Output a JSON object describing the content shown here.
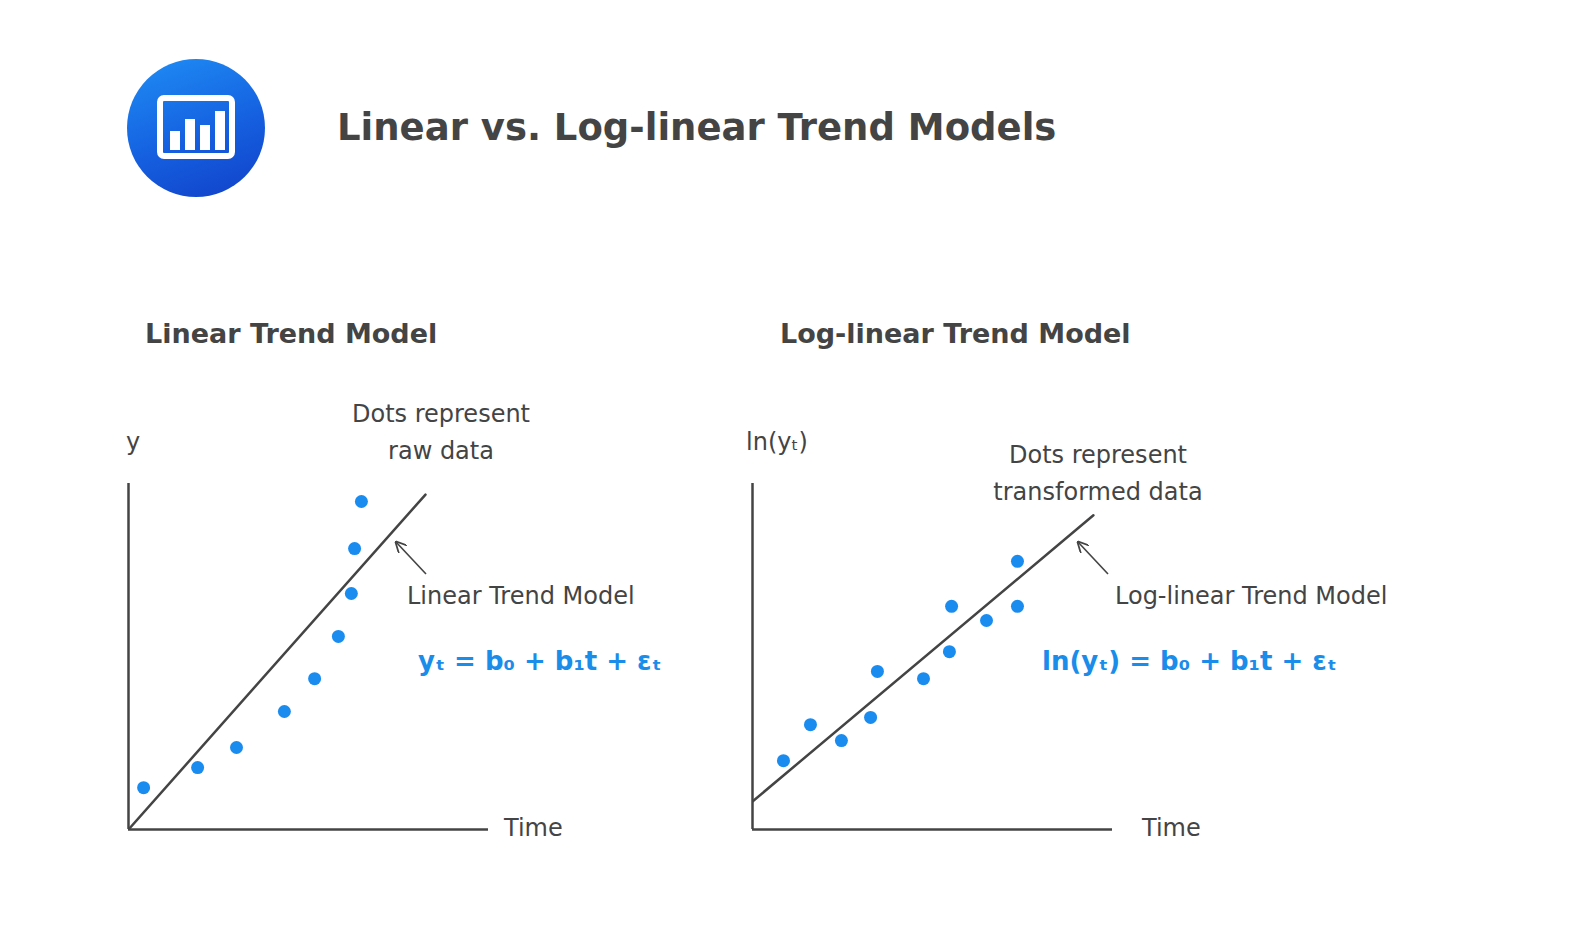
{
  "title": "Linear vs. Log-linear Trend Models",
  "chart_data": [
    {
      "type": "scatter",
      "title": "Linear Trend Model",
      "x_label": "Time",
      "y_label": "y",
      "xlim": [
        0,
        10
      ],
      "ylim": [
        0,
        10
      ],
      "tick_labels": false,
      "annotations": [
        "yₜ = b₀ + b₁t + εₜ"
      ],
      "series": [
        {
          "name": "Dots represent\nraw data",
          "type": "scatter",
          "marker": "circle",
          "color": "#1a8cf0",
          "x": [
            0.42,
            1.92,
            3.0,
            4.33,
            5.17,
            5.83,
            6.19,
            6.28,
            6.47
          ],
          "values": [
            1.21,
            1.79,
            2.37,
            3.41,
            4.36,
            5.58,
            6.82,
            8.12,
            9.48
          ]
        },
        {
          "name": "Linear Trend Model",
          "type": "line",
          "line_style": "solid",
          "color": "#444444",
          "x": [
            0,
            8.25
          ],
          "values": [
            0,
            9.68
          ]
        }
      ]
    },
    {
      "type": "scatter",
      "title": "Log-linear Trend Model",
      "x_label": "Time",
      "y_label": "ln(yₜ)",
      "xlim": [
        0,
        10
      ],
      "ylim": [
        0,
        10
      ],
      "tick_labels": false,
      "annotations": [
        "ln(yₜ) = b₀ + b₁t + εₜ"
      ],
      "series": [
        {
          "name": "Dots represent\ntransformed data",
          "type": "scatter",
          "marker": "circle",
          "color": "#1a8cf0",
          "x": [
            0.86,
            1.61,
            2.47,
            3.28,
            3.47,
            4.75,
            5.47,
            5.53,
            6.5,
            7.36,
            7.36
          ],
          "values": [
            1.99,
            3.03,
            2.57,
            3.24,
            4.57,
            4.36,
            5.14,
            6.45,
            6.04,
            6.45,
            7.75
          ]
        },
        {
          "name": "Log-linear Trend Model",
          "type": "line",
          "line_style": "solid",
          "color": "#444444",
          "x": [
            0,
            9.47
          ],
          "values": [
            0.81,
            9.08
          ]
        }
      ]
    }
  ]
}
